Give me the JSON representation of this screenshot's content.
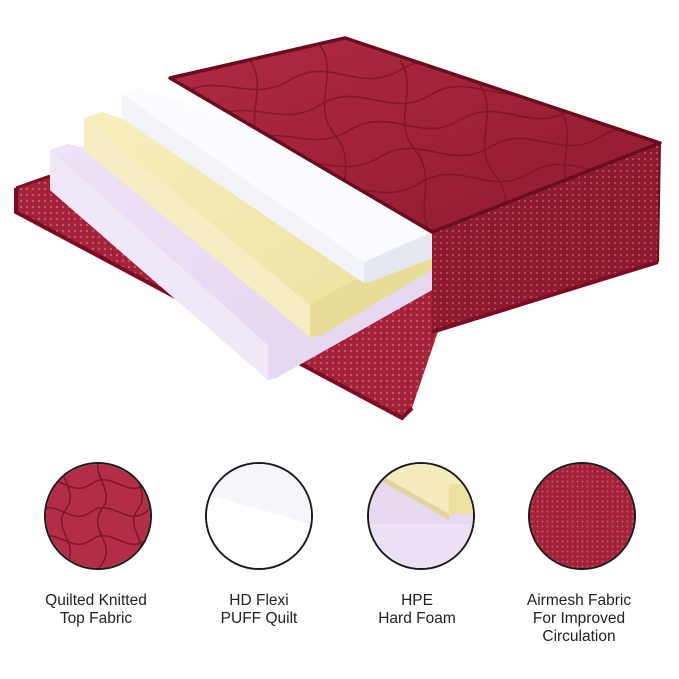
{
  "colors": {
    "maroon": "#9b1b32",
    "maroon_dark": "#6e0f22",
    "maroon_piping": "#7a0d24",
    "white_foam": "#fafbff",
    "yellow_foam": "#f3eab0",
    "lavender_foam": "#eadcf2"
  },
  "layers": [
    {
      "id": "quilted",
      "line1": "Quilted Knitted",
      "line2": "Top Fabric",
      "icon": "quilted-fabric-swatch"
    },
    {
      "id": "hd-flexi",
      "line1": "HD Flexi",
      "line2": "PUFF Quilt",
      "icon": "white-foam-swatch"
    },
    {
      "id": "hpe",
      "line1": "HPE",
      "line2": "Hard Foam",
      "icon": "foam-layers-swatch"
    },
    {
      "id": "airmesh",
      "line1": "Airmesh Fabric",
      "line2": "For Improved",
      "line3": "Circulation",
      "icon": "mesh-fabric-swatch"
    }
  ]
}
